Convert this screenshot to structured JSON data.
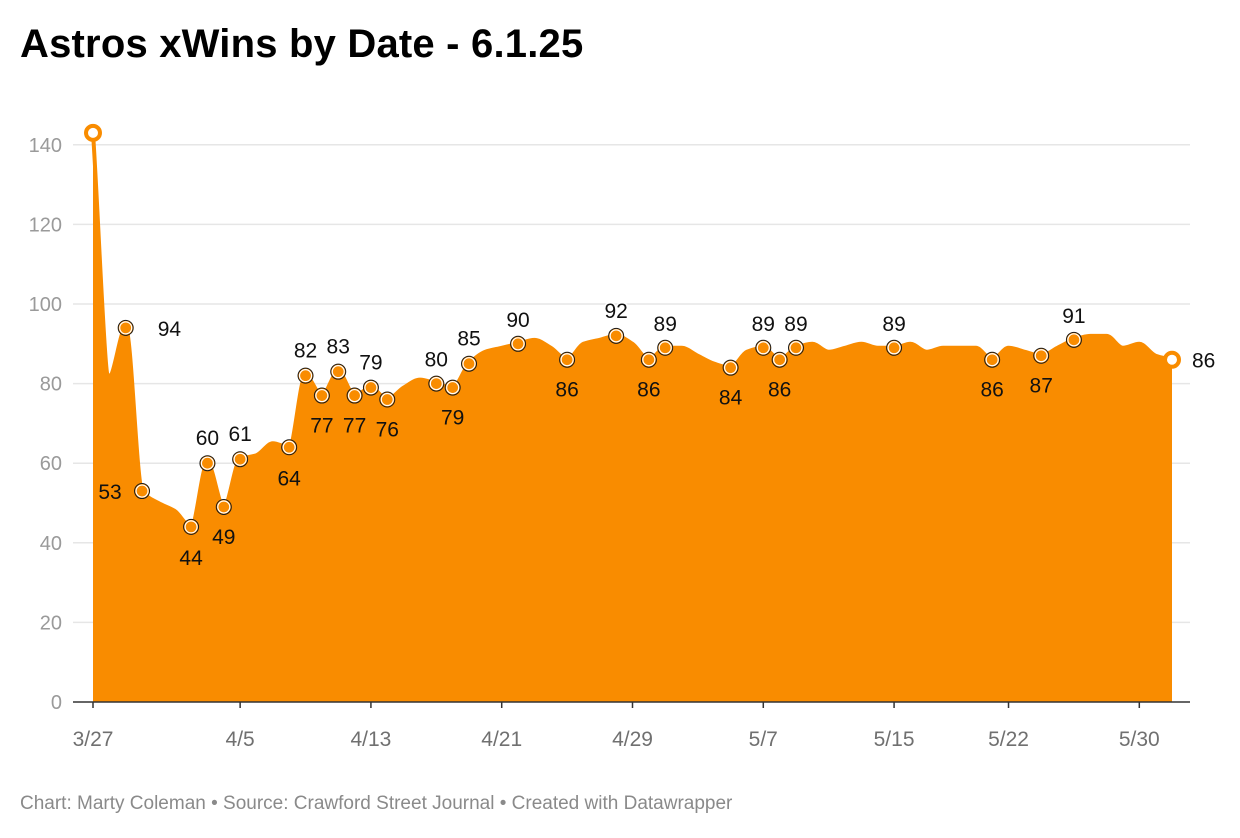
{
  "chart_data": {
    "type": "area",
    "title": "Astros xWins by Date - 6.1.25",
    "xlabel": "",
    "ylabel": "",
    "ylim": [
      0,
      145
    ],
    "yticks": [
      0,
      20,
      40,
      60,
      80,
      100,
      120,
      140
    ],
    "xticks": [
      "3/27",
      "4/5",
      "4/13",
      "4/21",
      "4/29",
      "5/7",
      "5/15",
      "5/22",
      "5/30"
    ],
    "xtick_dates": [
      "2025-03-27",
      "2025-04-05",
      "2025-04-13",
      "2025-04-21",
      "2025-04-29",
      "2025-05-07",
      "2025-05-15",
      "2025-05-22",
      "2025-05-30"
    ],
    "grid": true,
    "legend": "none",
    "colors": {
      "area": "#f98c00",
      "grid": "#e6e6e6",
      "axis": "#333333"
    },
    "series": [
      {
        "points": [
          {
            "date": "2025-03-27",
            "value": 143
          },
          {
            "date": "2025-03-28",
            "value": 82
          },
          {
            "date": "2025-03-29",
            "value": 94,
            "label": "94"
          },
          {
            "date": "2025-03-30",
            "value": 53,
            "label": "53"
          },
          {
            "date": "2025-03-31",
            "value": 50
          },
          {
            "date": "2025-04-01",
            "value": 48
          },
          {
            "date": "2025-04-02",
            "value": 44,
            "label": "44"
          },
          {
            "date": "2025-04-03",
            "value": 60,
            "label": "60"
          },
          {
            "date": "2025-04-04",
            "value": 49,
            "label": "49"
          },
          {
            "date": "2025-04-05",
            "value": 61,
            "label": "61"
          },
          {
            "date": "2025-04-06",
            "value": 62
          },
          {
            "date": "2025-04-07",
            "value": 65
          },
          {
            "date": "2025-04-08",
            "value": 64,
            "label": "64"
          },
          {
            "date": "2025-04-09",
            "value": 82,
            "label": "82"
          },
          {
            "date": "2025-04-10",
            "value": 77,
            "label": "77"
          },
          {
            "date": "2025-04-11",
            "value": 83,
            "label": "83"
          },
          {
            "date": "2025-04-12",
            "value": 77,
            "label": "77"
          },
          {
            "date": "2025-04-13",
            "value": 79,
            "label": "79"
          },
          {
            "date": "2025-04-14",
            "value": 76,
            "label": "76"
          },
          {
            "date": "2025-04-15",
            "value": 79
          },
          {
            "date": "2025-04-16",
            "value": 81
          },
          {
            "date": "2025-04-17",
            "value": 80,
            "label": "80"
          },
          {
            "date": "2025-04-18",
            "value": 79,
            "label": "79"
          },
          {
            "date": "2025-04-19",
            "value": 85,
            "label": "85"
          },
          {
            "date": "2025-04-20",
            "value": 88
          },
          {
            "date": "2025-04-21",
            "value": 89
          },
          {
            "date": "2025-04-22",
            "value": 90,
            "label": "90"
          },
          {
            "date": "2025-04-23",
            "value": 91
          },
          {
            "date": "2025-04-24",
            "value": 89
          },
          {
            "date": "2025-04-25",
            "value": 86,
            "label": "86"
          },
          {
            "date": "2025-04-26",
            "value": 90
          },
          {
            "date": "2025-04-27",
            "value": 91
          },
          {
            "date": "2025-04-28",
            "value": 92,
            "label": "92"
          },
          {
            "date": "2025-04-29",
            "value": 90
          },
          {
            "date": "2025-04-30",
            "value": 86,
            "label": "86"
          },
          {
            "date": "2025-05-01",
            "value": 89,
            "label": "89"
          },
          {
            "date": "2025-05-02",
            "value": 89
          },
          {
            "date": "2025-05-03",
            "value": 87
          },
          {
            "date": "2025-05-04",
            "value": 85
          },
          {
            "date": "2025-05-05",
            "value": 84,
            "label": "84"
          },
          {
            "date": "2025-05-06",
            "value": 88
          },
          {
            "date": "2025-05-07",
            "value": 89,
            "label": "89"
          },
          {
            "date": "2025-05-08",
            "value": 86,
            "label": "86"
          },
          {
            "date": "2025-05-09",
            "value": 89,
            "label": "89"
          },
          {
            "date": "2025-05-10",
            "value": 90
          },
          {
            "date": "2025-05-11",
            "value": 88
          },
          {
            "date": "2025-05-12",
            "value": 89
          },
          {
            "date": "2025-05-13",
            "value": 90
          },
          {
            "date": "2025-05-14",
            "value": 89
          },
          {
            "date": "2025-05-15",
            "value": 89,
            "label": "89"
          },
          {
            "date": "2025-05-16",
            "value": 90
          },
          {
            "date": "2025-05-17",
            "value": 88
          },
          {
            "date": "2025-05-18",
            "value": 89
          },
          {
            "date": "2025-05-19",
            "value": 89
          },
          {
            "date": "2025-05-20",
            "value": 89
          },
          {
            "date": "2025-05-21",
            "value": 86,
            "label": "86"
          },
          {
            "date": "2025-05-22",
            "value": 89
          },
          {
            "date": "2025-05-23",
            "value": 88
          },
          {
            "date": "2025-05-24",
            "value": 87,
            "label": "87"
          },
          {
            "date": "2025-05-25",
            "value": 89
          },
          {
            "date": "2025-05-26",
            "value": 91,
            "label": "91"
          },
          {
            "date": "2025-05-27",
            "value": 92
          },
          {
            "date": "2025-05-28",
            "value": 92
          },
          {
            "date": "2025-05-29",
            "value": 89
          },
          {
            "date": "2025-05-30",
            "value": 90
          },
          {
            "date": "2025-05-31",
            "value": 87
          },
          {
            "date": "2025-06-01",
            "value": 86,
            "label": "86"
          }
        ]
      }
    ]
  },
  "footer": {
    "credit": "Chart: Marty Coleman • Source: Crawford Street Journal • Created with Datawrapper"
  }
}
